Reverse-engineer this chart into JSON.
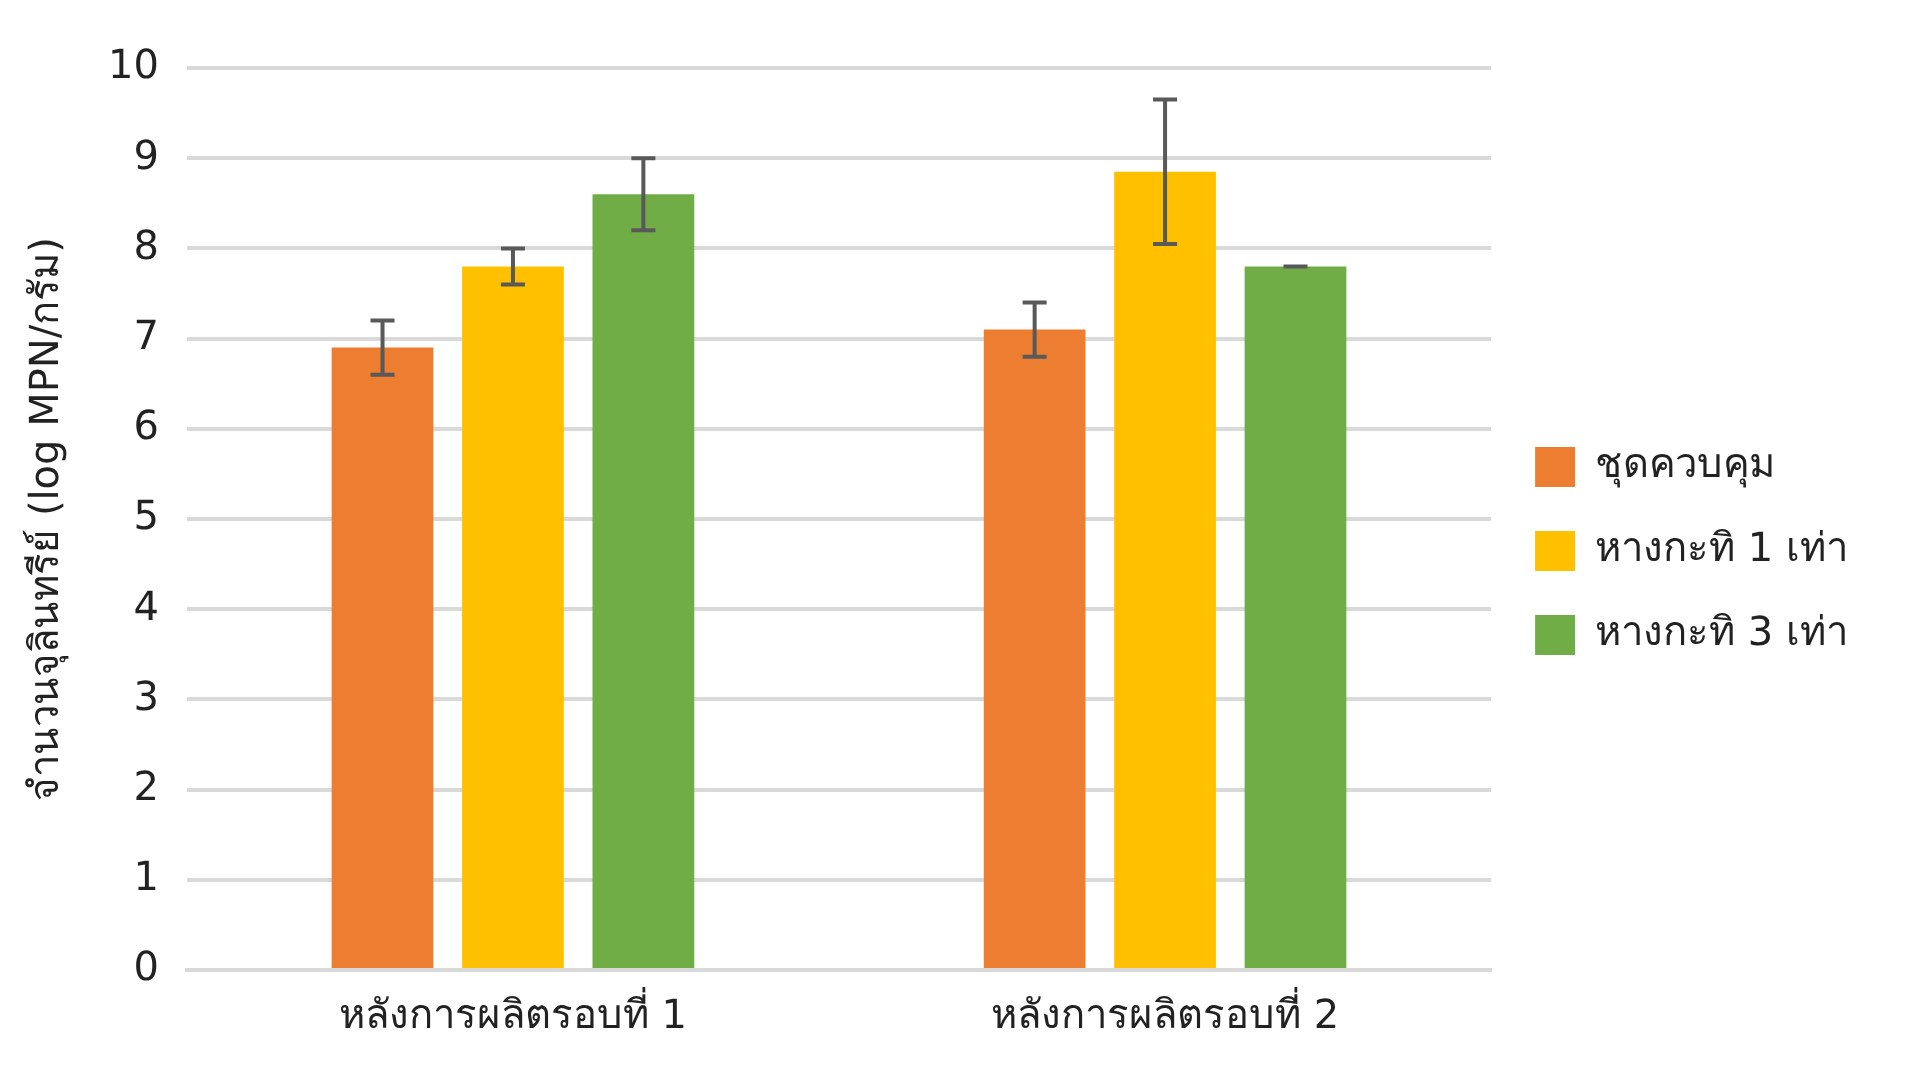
{
  "chart_data": {
    "type": "bar",
    "ylabel": "จำนวนจุลินทรีย์ (log MPN/กรัม)",
    "categories": [
      "หลังการผลิตรอบที่ 1",
      "หลังการผลิตรอบที่ 2"
    ],
    "series": [
      {
        "name": "ชุดควบคุม",
        "color": "#ed7d31",
        "values": [
          6.9,
          7.1
        ],
        "errors": [
          0.3,
          0.3
        ]
      },
      {
        "name": "หางกะทิ 1 เท่า",
        "color": "#ffc000",
        "values": [
          7.8,
          8.85
        ],
        "errors": [
          0.2,
          0.8
        ]
      },
      {
        "name": "หางกะทิ 3 เท่า",
        "color": "#70ad47",
        "values": [
          8.6,
          7.8
        ],
        "errors": [
          0.4,
          0
        ]
      }
    ],
    "ylim": [
      0,
      10
    ],
    "yticks": [
      0,
      1,
      2,
      3,
      4,
      5,
      6,
      7,
      8,
      9,
      10
    ],
    "grid": "y",
    "legend": "right"
  }
}
